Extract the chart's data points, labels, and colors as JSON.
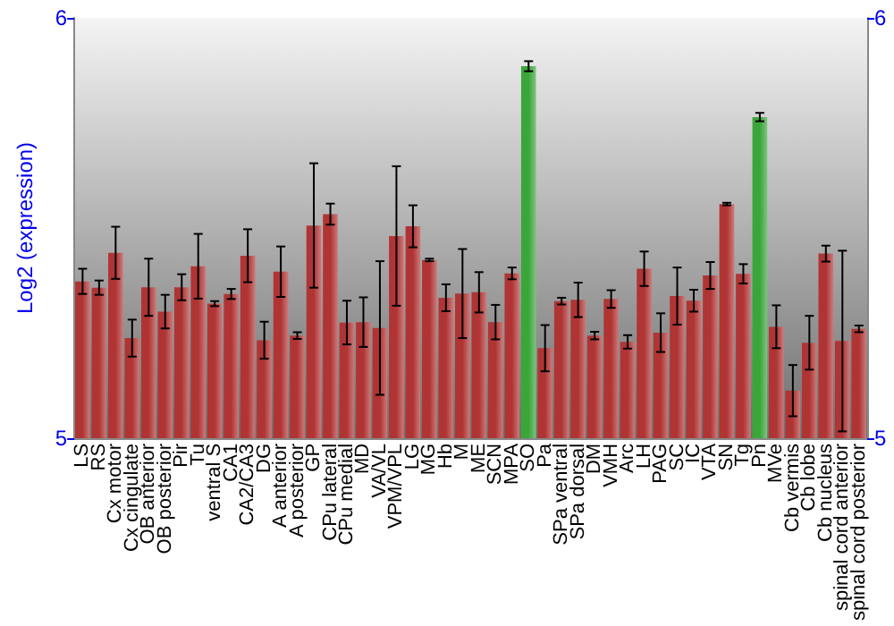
{
  "chart_data": {
    "type": "bar",
    "ylabel": "Log2 (expression)",
    "categories": [
      "LS",
      "RS",
      "Cx motor",
      "Cx cingulate",
      "OB anterior",
      "OB posterior",
      "Pir",
      "Tu",
      "ventral S",
      "CA1",
      "CA2/CA3",
      "DG",
      "A anterior",
      "A posterior",
      "GP",
      "CPu lateral",
      "CPu medial",
      "MD",
      "VA/VL",
      "VPM/VPL",
      "LG",
      "MG",
      "Hb",
      "M",
      "ME",
      "SCN",
      "MPA",
      "SO",
      "Pa",
      "SPa ventral",
      "SPa dorsal",
      "DM",
      "VMH",
      "Arc",
      "LH",
      "PAG",
      "SC",
      "IC",
      "VTA",
      "SN",
      "Tg",
      "Pn",
      "MVe",
      "Cb vermis",
      "Cb lobe",
      "Cb nucleus",
      "spinal cord anterior",
      "spinal cord posterior"
    ],
    "values": [
      5.373,
      5.358,
      5.441,
      5.238,
      5.359,
      5.301,
      5.359,
      5.409,
      5.32,
      5.343,
      5.434,
      5.233,
      5.396,
      5.244,
      5.506,
      5.533,
      5.275,
      5.276,
      5.262,
      5.481,
      5.504,
      5.424,
      5.334,
      5.344,
      5.347,
      5.276,
      5.392,
      5.885,
      5.214,
      5.326,
      5.329,
      5.244,
      5.331,
      5.229,
      5.403,
      5.251,
      5.338,
      5.327,
      5.387,
      5.557,
      5.391,
      5.764,
      5.265,
      5.113,
      5.227,
      5.439,
      5.231,
      5.26
    ],
    "errors": [
      0.03,
      0.017,
      0.062,
      0.044,
      0.068,
      0.04,
      0.031,
      0.077,
      0.006,
      0.012,
      0.063,
      0.044,
      0.06,
      0.008,
      0.148,
      0.025,
      0.052,
      0.059,
      0.159,
      0.166,
      0.05,
      0.003,
      0.032,
      0.106,
      0.048,
      0.041,
      0.014,
      0.012,
      0.055,
      0.008,
      0.041,
      0.009,
      0.021,
      0.016,
      0.041,
      0.046,
      0.068,
      0.026,
      0.032,
      0.003,
      0.023,
      0.01,
      0.051,
      0.061,
      0.064,
      0.019,
      0.215,
      0.008
    ],
    "colors": [
      "#b03434",
      "#b03434",
      "#b03434",
      "#b03434",
      "#b03434",
      "#b03434",
      "#b03434",
      "#b03434",
      "#b03434",
      "#b03434",
      "#b03434",
      "#b03434",
      "#b03434",
      "#b03434",
      "#b03434",
      "#b03434",
      "#b03434",
      "#b03434",
      "#b03434",
      "#b03434",
      "#b03434",
      "#b03434",
      "#b03434",
      "#b03434",
      "#b03434",
      "#b03434",
      "#b03434",
      "#3aa63a",
      "#b03434",
      "#b03434",
      "#b03434",
      "#b03434",
      "#b03434",
      "#b03434",
      "#b03434",
      "#b03434",
      "#b03434",
      "#b03434",
      "#b03434",
      "#b03434",
      "#b03434",
      "#3aa63a",
      "#b03434",
      "#b03434",
      "#b03434",
      "#b03434",
      "#b03434",
      "#b03434"
    ],
    "ylim": [
      5,
      6
    ],
    "yticks": [
      5,
      6
    ],
    "y2lim": [
      5,
      6
    ],
    "y2ticks": [
      5,
      6
    ]
  }
}
